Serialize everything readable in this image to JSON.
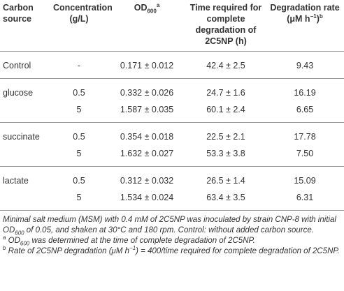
{
  "header": [
    [
      {
        "text": "Carbon source",
        "style": "normal"
      }
    ],
    [
      {
        "text": "Concentration (g/L)",
        "style": "normal"
      }
    ],
    [
      {
        "text": "OD",
        "style": "normal"
      },
      {
        "text": "600",
        "style": "sub"
      },
      {
        "text": "a",
        "style": "sup"
      }
    ],
    [
      {
        "text": "Time required for complete degradation of 2C5NP (h)",
        "style": "normal"
      }
    ],
    [
      {
        "text": "Degradation rate (μM h",
        "style": "normal"
      },
      {
        "text": "−1",
        "style": "sup"
      },
      {
        "text": ")",
        "style": "normal"
      },
      {
        "text": "b",
        "style": "sup"
      }
    ]
  ],
  "groups": [
    {
      "source": "Control",
      "rows": [
        [
          "-",
          "0.171 ± 0.012",
          "42.4 ± 2.5",
          "9.43"
        ]
      ]
    },
    {
      "source": "glucose",
      "rows": [
        [
          "0.5",
          "0.332 ± 0.026",
          "24.7 ± 1.6",
          "16.19"
        ],
        [
          "5",
          "1.587 ± 0.035",
          "60.1 ± 2.4",
          "6.65"
        ]
      ]
    },
    {
      "source": "succinate",
      "rows": [
        [
          "0.5",
          "0.354 ± 0.018",
          "22.5 ± 2.1",
          "17.78"
        ],
        [
          "5",
          "1.632 ± 0.027",
          "53.3 ± 3.8",
          "7.50"
        ]
      ]
    },
    {
      "source": "lactate",
      "rows": [
        [
          "0.5",
          "0.312 ± 0.032",
          "26.5 ± 1.4",
          "15.09"
        ],
        [
          "5",
          "1.534 ± 0.024",
          "63.4 ± 3.5",
          "6.31"
        ]
      ]
    }
  ],
  "footnotes": [
    [
      {
        "text": "Minimal salt medium (MSM) with 0.4 mM of 2C5NP was inoculated by strain CNP-8 with initial OD",
        "style": "normal"
      },
      {
        "text": "600",
        "style": "sub"
      },
      {
        "text": " of 0.05, and shaken at 30°C and 180 rpm. Control: without added carbon source.",
        "style": "normal"
      }
    ],
    [
      {
        "text": "a",
        "style": "sup"
      },
      {
        "text": " OD",
        "style": "normal"
      },
      {
        "text": "600",
        "style": "sub"
      },
      {
        "text": " was determined at the time of complete degradation of 2C5NP.",
        "style": "normal"
      }
    ],
    [
      {
        "text": "b",
        "style": "sup"
      },
      {
        "text": " Rate of 2C5NP degradation (μM h",
        "style": "normal"
      },
      {
        "text": "−1",
        "style": "sup"
      },
      {
        "text": ") = 400/time required for complete degradation of 2C5NP.",
        "style": "normal"
      }
    ]
  ]
}
